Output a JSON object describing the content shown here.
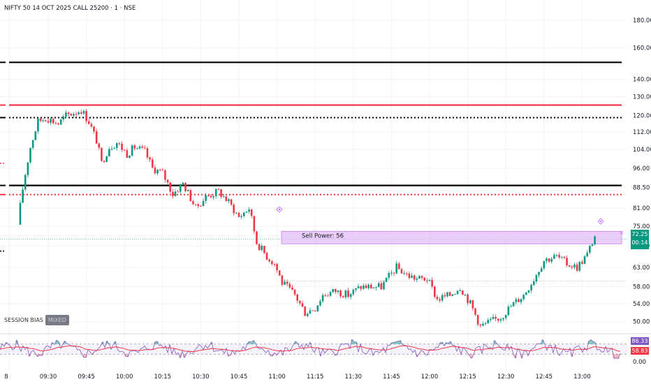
{
  "header": {
    "title": "NIFTY 50 14 OCT 2025 CALL 25200 · 1 · NSE"
  },
  "colors": {
    "up": "#089981",
    "down": "#f23645",
    "black_level": "#000000",
    "red_level": "#f23645",
    "zone": "#e1bdf8",
    "rsi": "#7e57c2",
    "rsi_ma": "#f23645"
  },
  "chart_data": {
    "type": "candlestick",
    "title": "NIFTY 50 14 OCT 2025 CALL 25200 · 1 · NSE",
    "y_axis_ticks": [
      180.0,
      160.0,
      140.0,
      130.0,
      120.0,
      112.0,
      104.0,
      96.0,
      88.5,
      81.0,
      75.0,
      69.0,
      63.0,
      58.0,
      54.0,
      50.0
    ],
    "y_scale": "log",
    "ylim": [
      47.5,
      195
    ],
    "x_axis_ticks": [
      "8",
      "09:30",
      "09:45",
      "10:00",
      "10:15",
      "10:30",
      "10:45",
      "11:00",
      "11:15",
      "11:30",
      "11:45",
      "12:00",
      "12:15",
      "12:30",
      "12:45",
      "13:00"
    ],
    "last_price": "72.25",
    "countdown": "00:14",
    "levels": [
      {
        "price": 150.5,
        "style": "solid",
        "color": "black"
      },
      {
        "price": 125.5,
        "style": "solid",
        "color": "red"
      },
      {
        "price": 119.0,
        "style": "dotted",
        "color": "black"
      },
      {
        "price": 89.2,
        "style": "solid",
        "color": "black"
      },
      {
        "price": 85.8,
        "style": "dotted",
        "color": "red"
      }
    ],
    "zone": {
      "label": "Sell Power: 56",
      "price_low": 69.6,
      "price_high": 73.4
    },
    "annotations": [
      {
        "text": "SESSION BIAS",
        "badge": "MIXED"
      }
    ],
    "path_keypoints_time_price": [
      [
        "09:19",
        75.5
      ],
      [
        "09:21",
        88
      ],
      [
        "09:24",
        105
      ],
      [
        "09:27",
        117
      ],
      [
        "09:30",
        119
      ],
      [
        "09:35",
        116
      ],
      [
        "09:38",
        120
      ],
      [
        "09:44",
        123
      ],
      [
        "09:47",
        117
      ],
      [
        "09:50",
        108
      ],
      [
        "09:52",
        98
      ],
      [
        "09:55",
        105
      ],
      [
        "09:58",
        107
      ],
      [
        "10:02",
        102
      ],
      [
        "10:05",
        105
      ],
      [
        "10:09",
        103
      ],
      [
        "10:12",
        96
      ],
      [
        "10:16",
        94
      ],
      [
        "10:20",
        86
      ],
      [
        "10:24",
        90
      ],
      [
        "10:29",
        81
      ],
      [
        "10:33",
        85
      ],
      [
        "10:38",
        87
      ],
      [
        "10:42",
        83
      ],
      [
        "10:46",
        78
      ],
      [
        "10:50",
        81
      ],
      [
        "10:53",
        70
      ],
      [
        "10:57",
        66
      ],
      [
        "11:00",
        64
      ],
      [
        "11:03",
        59
      ],
      [
        "11:08",
        56
      ],
      [
        "11:12",
        52
      ],
      [
        "11:16",
        53
      ],
      [
        "11:19",
        56
      ],
      [
        "11:24",
        57
      ],
      [
        "11:29",
        56
      ],
      [
        "11:34",
        58
      ],
      [
        "11:38",
        58
      ],
      [
        "11:42",
        58
      ],
      [
        "11:48",
        63
      ],
      [
        "11:52",
        61
      ],
      [
        "11:56",
        60
      ],
      [
        "12:00",
        60
      ],
      [
        "12:04",
        55
      ],
      [
        "12:09",
        56
      ],
      [
        "12:13",
        58
      ],
      [
        "12:17",
        54
      ],
      [
        "12:21",
        49
      ],
      [
        "12:25",
        50
      ],
      [
        "12:29",
        51
      ],
      [
        "12:34",
        54
      ],
      [
        "12:38",
        56
      ],
      [
        "12:42",
        60
      ],
      [
        "12:46",
        65
      ],
      [
        "12:51",
        66
      ],
      [
        "12:55",
        64
      ],
      [
        "12:59",
        63
      ],
      [
        "13:03",
        66.5
      ],
      [
        "13:06",
        72
      ]
    ],
    "rsi": {
      "values_shown": [
        "86.33",
        "58.83"
      ],
      "ticks": [
        "0.00"
      ]
    }
  }
}
